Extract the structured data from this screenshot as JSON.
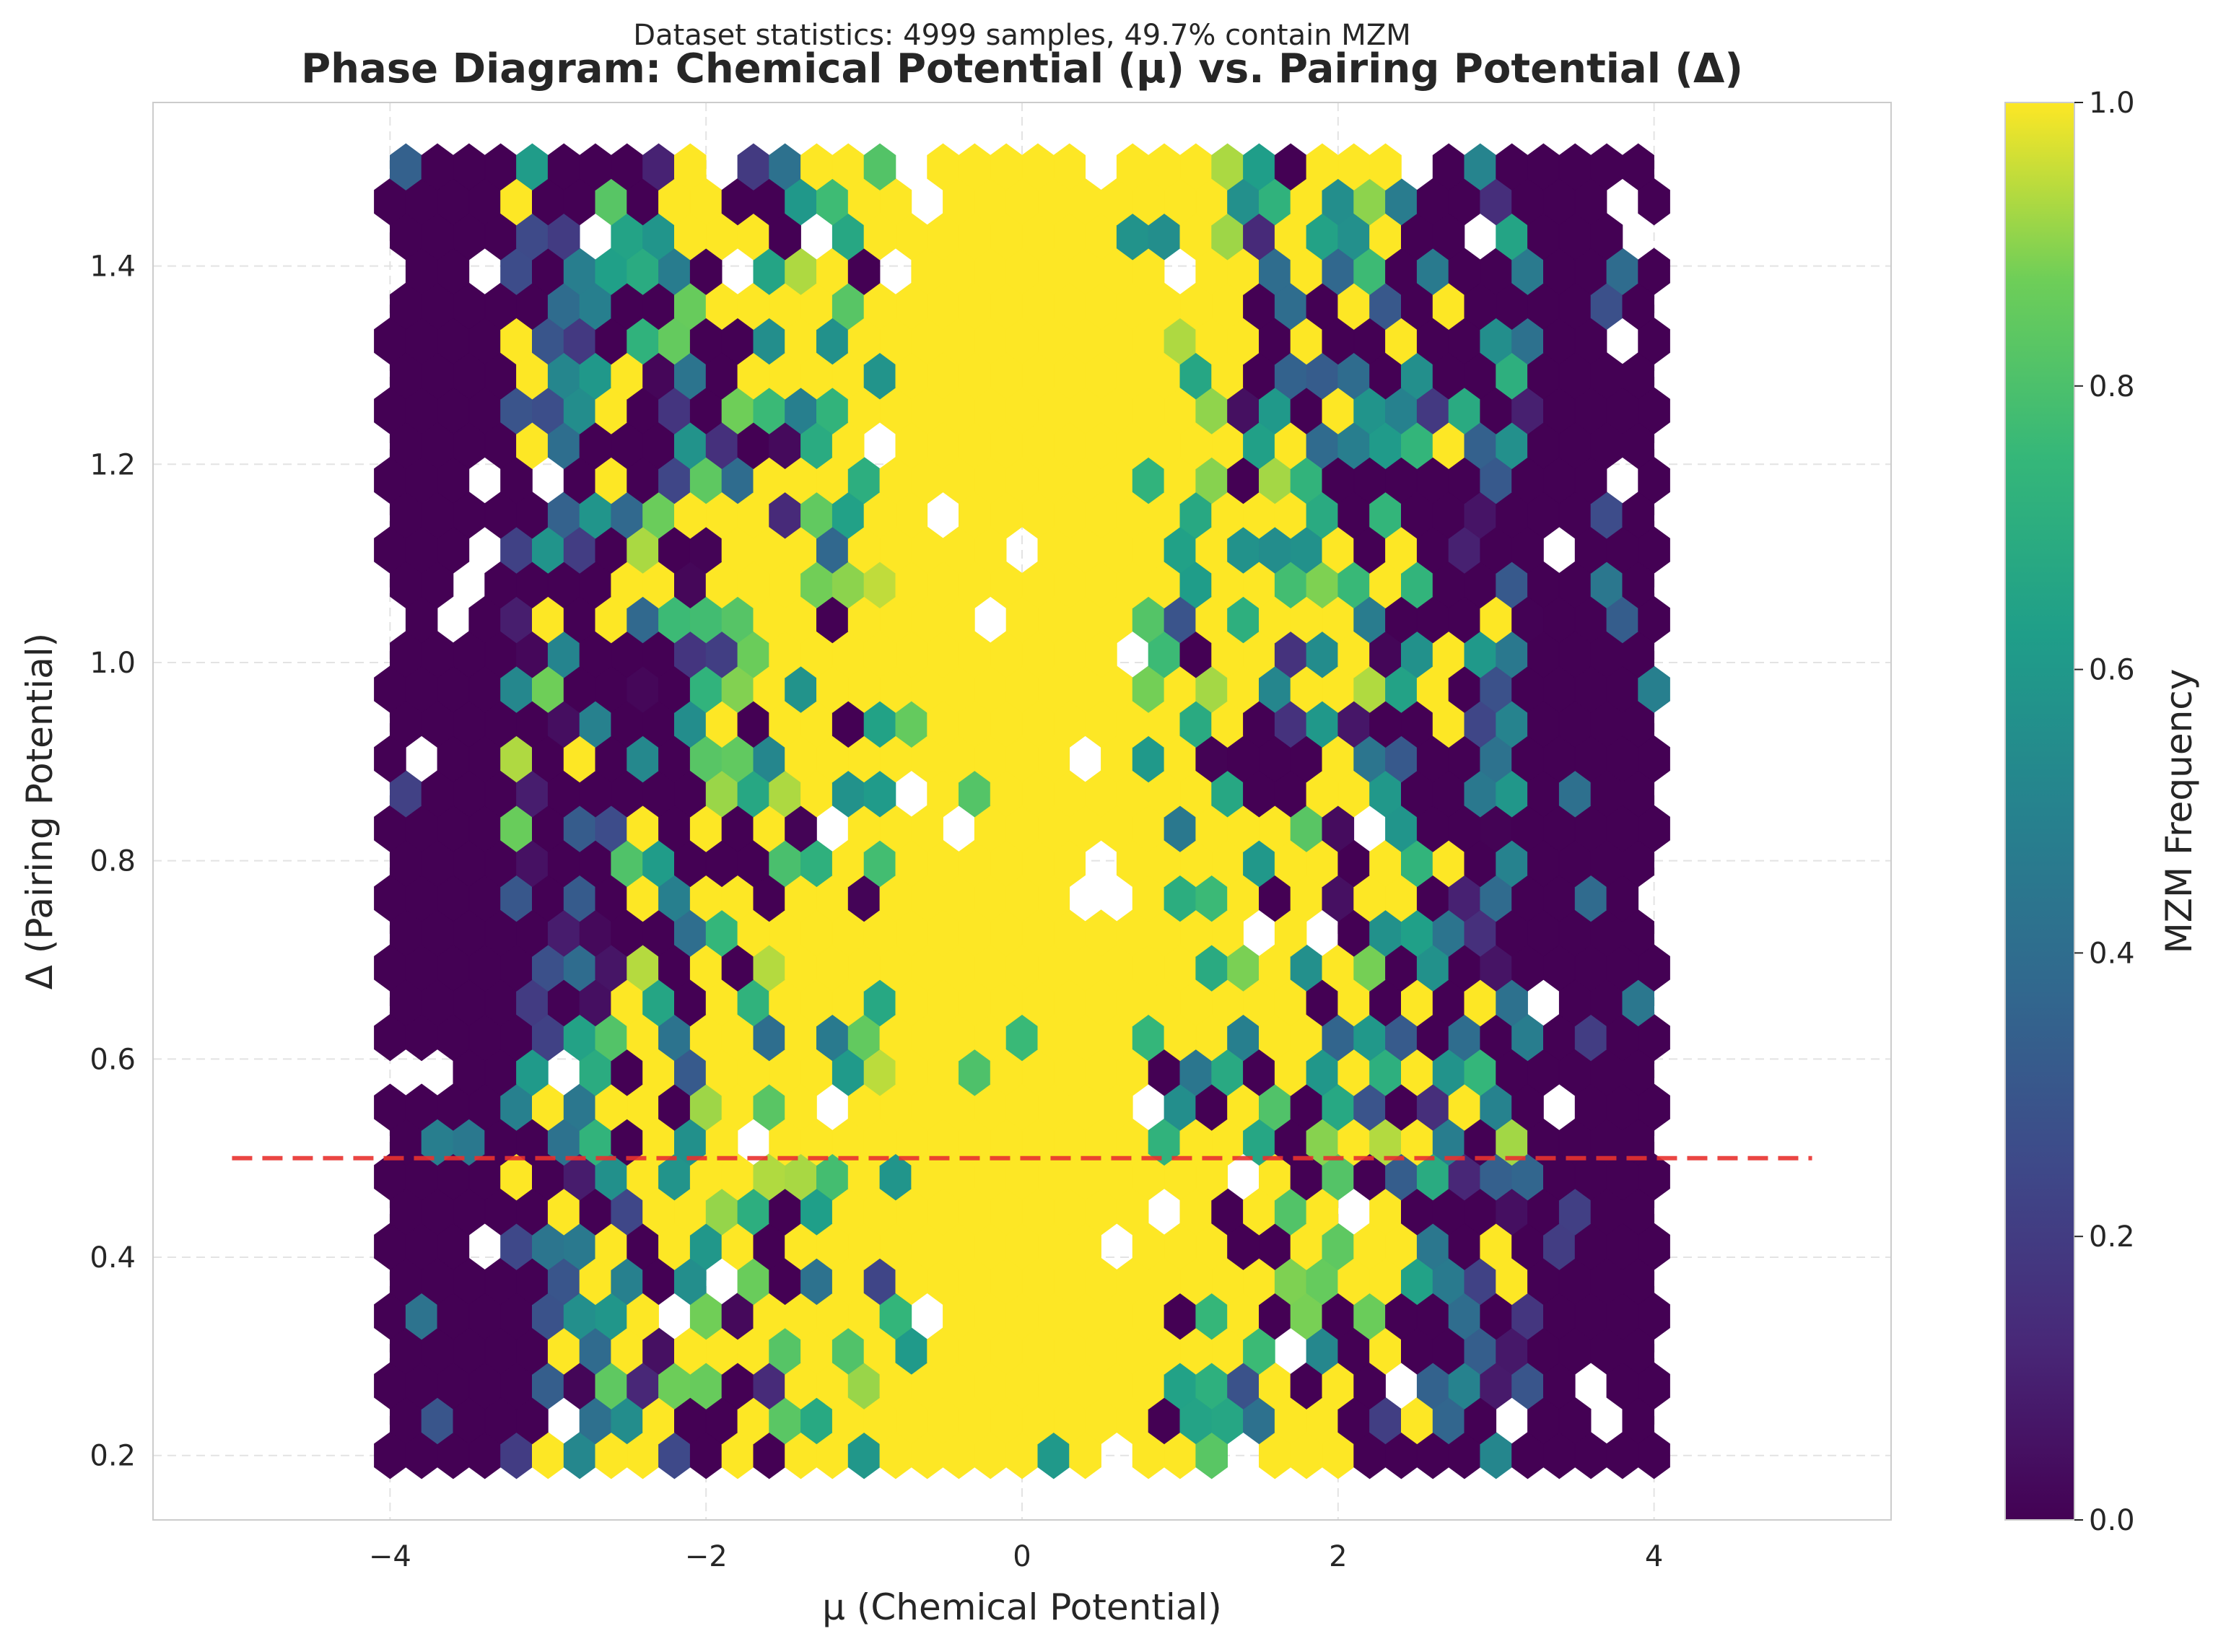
{
  "chart_data": {
    "type": "heatmap",
    "subtitle": "Dataset statistics: 4999 samples, 49.7% contain MZM",
    "title": "Phase Diagram: Chemical Potential (μ) vs. Pairing Potential (Δ)",
    "xlabel": "μ (Chemical Potential)",
    "ylabel": "Δ (Pairing Potential)",
    "xlim": [
      -5.5,
      5.5
    ],
    "ylim": [
      0.135,
      1.565
    ],
    "x_ticks": [
      -4,
      -2,
      0,
      2,
      4
    ],
    "x_tick_labels": [
      "−4",
      "−2",
      "0",
      "2",
      "4"
    ],
    "y_ticks": [
      0.2,
      0.4,
      0.6,
      0.8,
      1.0,
      1.2,
      1.4
    ],
    "y_tick_labels": [
      "0.2",
      "0.4",
      "0.6",
      "0.8",
      "1.0",
      "1.2",
      "1.4"
    ],
    "grid": true,
    "colormap": "viridis",
    "colorbar": {
      "label": "MZM Frequency",
      "range": [
        0.0,
        1.0
      ],
      "ticks": [
        0.0,
        0.2,
        0.4,
        0.6,
        0.8,
        1.0
      ],
      "tick_labels": [
        "0.0",
        "0.2",
        "0.4",
        "0.6",
        "0.8",
        "1.0"
      ]
    },
    "hexbin": {
      "x_range": [
        -4,
        4
      ],
      "y_range": [
        0.2,
        1.5
      ],
      "columns": 41,
      "rows": 38,
      "value_by_abs_mu": [
        {
          "abs_mu_max": 0.8,
          "mzm_frequency": 1.0
        },
        {
          "abs_mu_max": 1.4,
          "mzm_frequency": 0.9
        },
        {
          "abs_mu_max": 2.0,
          "mzm_frequency": 0.65
        },
        {
          "abs_mu_max": 2.6,
          "mzm_frequency": 0.45
        },
        {
          "abs_mu_max": 3.2,
          "mzm_frequency": 0.2
        },
        {
          "abs_mu_max": 4.0,
          "mzm_frequency": 0.0
        }
      ],
      "empty_bin_fraction": 0.05
    },
    "reference_line": {
      "y": 0.5,
      "x_range": [
        -5,
        5
      ],
      "color": "#e8322f",
      "style": "dashed"
    }
  }
}
